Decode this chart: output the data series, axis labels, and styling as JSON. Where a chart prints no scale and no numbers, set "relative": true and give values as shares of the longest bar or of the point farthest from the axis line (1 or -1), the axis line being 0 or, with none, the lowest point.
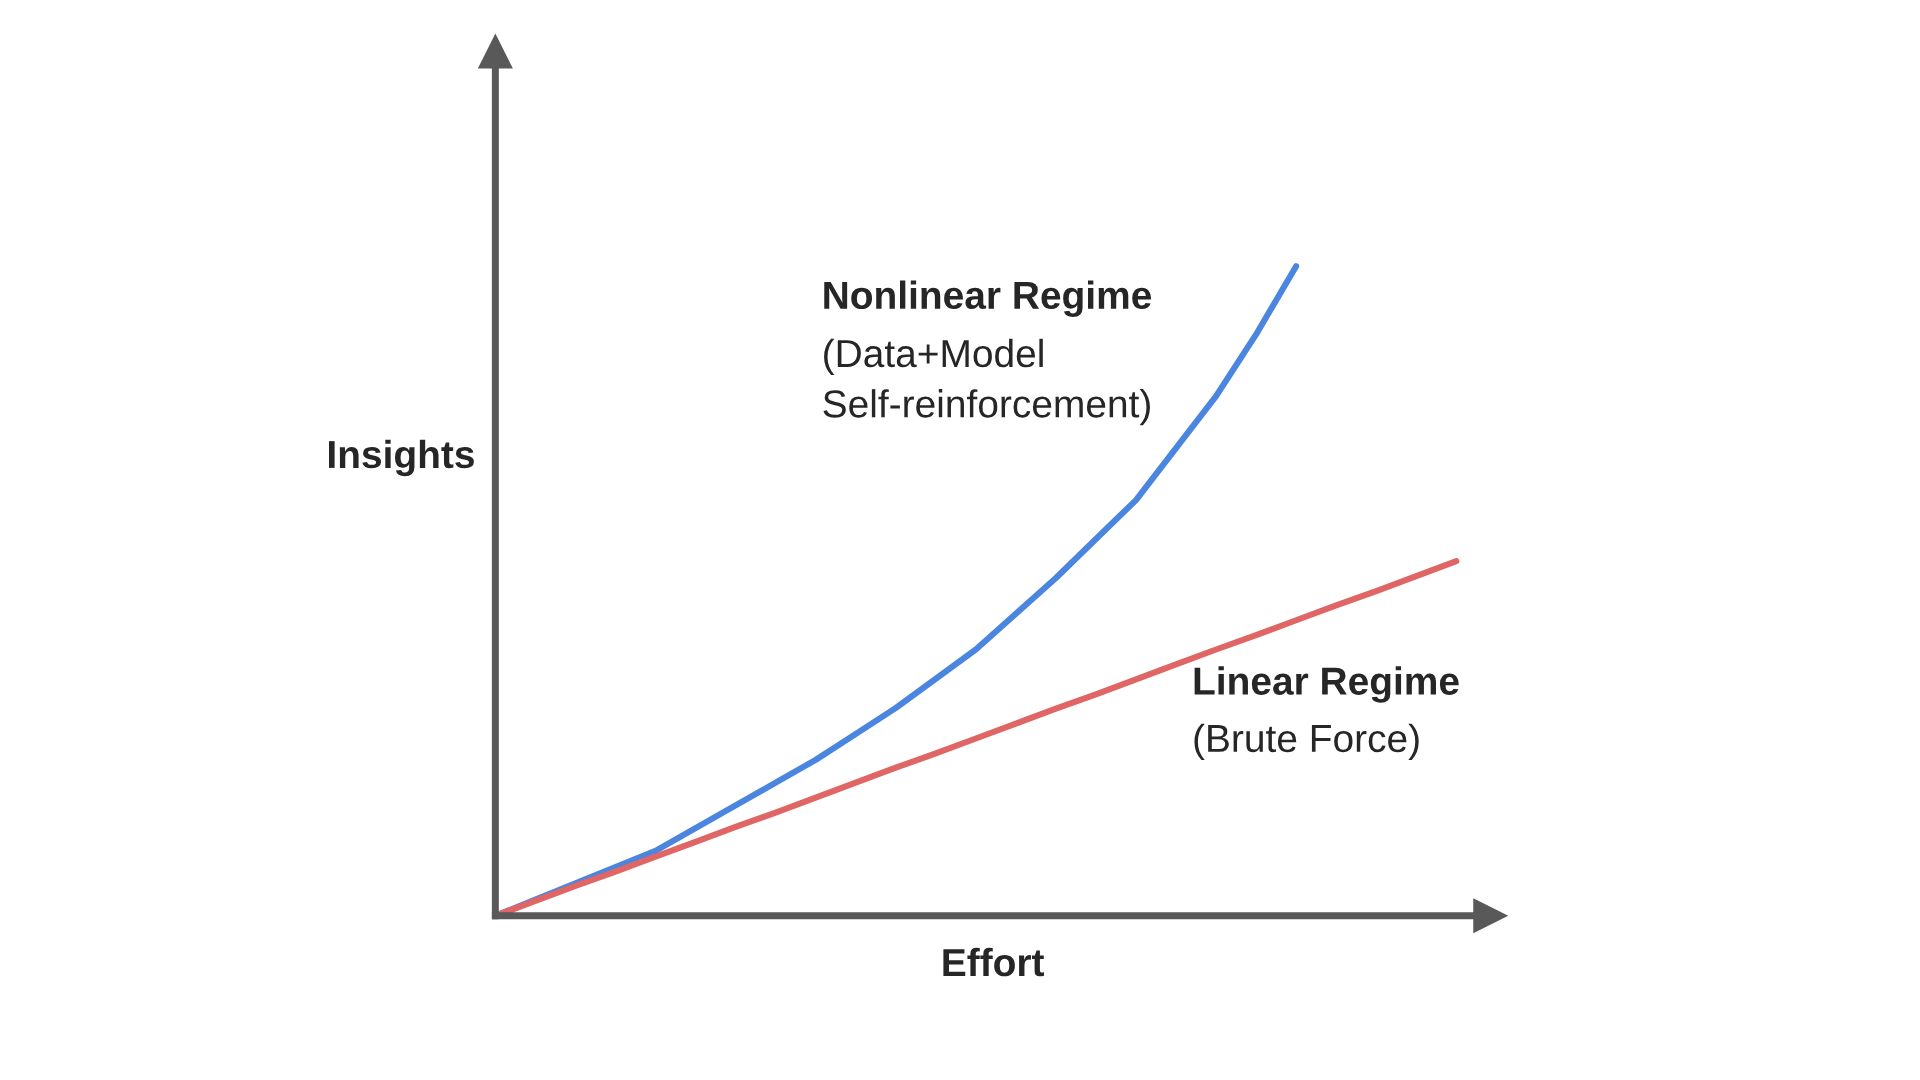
{
  "chart_data": {
    "type": "line",
    "relative": true,
    "xlabel": "Effort",
    "ylabel": "Insights",
    "categories": [
      null,
      null,
      null,
      null,
      null,
      null,
      null,
      null,
      null,
      null,
      null,
      null,
      null,
      null,
      null,
      null,
      null,
      null,
      null,
      null,
      null,
      null,
      null,
      null,
      null
    ],
    "series": [
      {
        "name": "Nonlinear Regime",
        "color": "#4a86e0",
        "values": [
          0,
          0.025,
          0.05,
          0.075,
          0.1,
          0.135,
          0.17,
          0.205,
          0.24,
          0.28,
          0.32,
          0.365,
          0.41,
          0.465,
          0.52,
          0.58,
          0.64,
          0.72,
          0.8,
          0.895,
          1.0,
          null,
          null,
          null,
          null
        ]
      },
      {
        "name": "Linear Regime",
        "color": "#e06666",
        "values": [
          0,
          0.023,
          0.046,
          0.068,
          0.091,
          0.114,
          0.137,
          0.159,
          0.182,
          0.205,
          0.228,
          0.25,
          0.273,
          0.296,
          0.319,
          0.341,
          0.364,
          0.387,
          0.41,
          0.432,
          0.455,
          0.478,
          0.5,
          0.523,
          0.546
        ]
      }
    ],
    "annotations": [
      "(Data+Model\nSelf-reinforcement)",
      "(Brute Force)"
    ],
    "marker": "none",
    "line_style": "solid",
    "grid": false,
    "legend": false
  }
}
